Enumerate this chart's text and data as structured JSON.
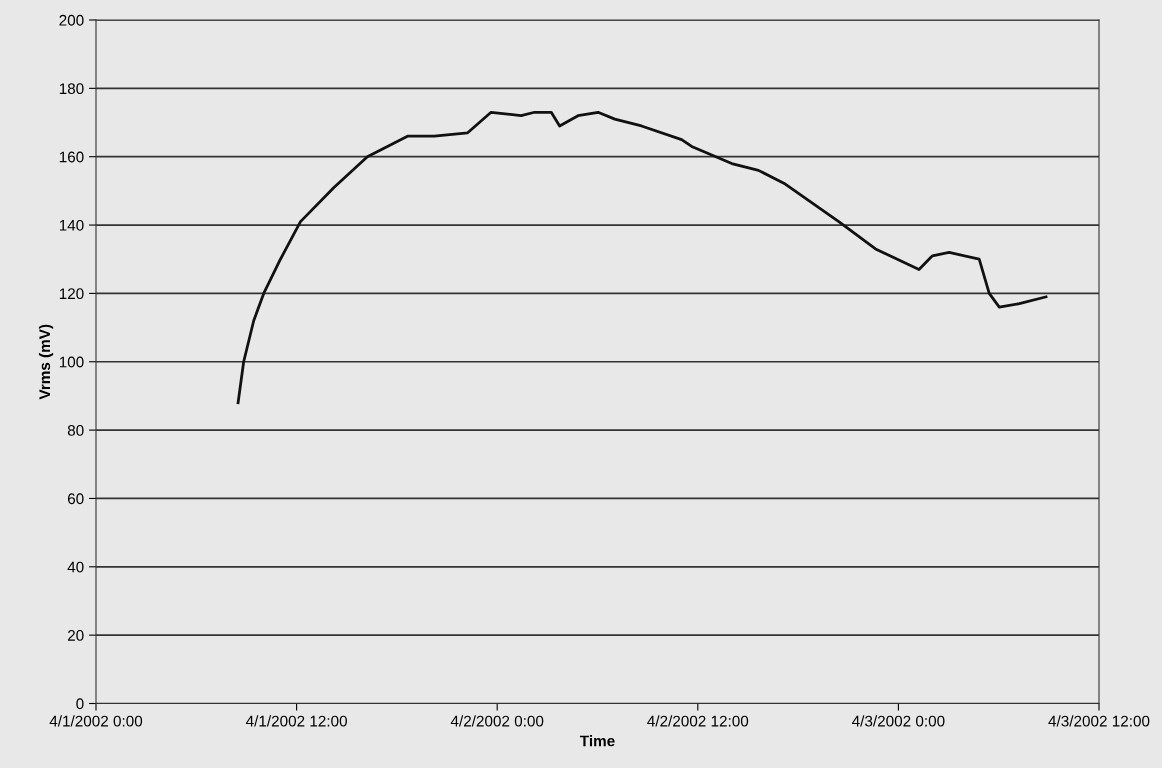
{
  "chart_data": {
    "type": "line",
    "xlabel": "Time",
    "ylabel": "Vrms (mV)",
    "x": [
      "2002-04-01T08:30",
      "2002-04-01T08:50",
      "2002-04-01T09:26",
      "2002-04-01T10:02",
      "2002-04-01T11:02",
      "2002-04-01T12:14",
      "2002-04-01T14:14",
      "2002-04-01T16:14",
      "2002-04-01T18:38",
      "2002-04-01T20:14",
      "2002-04-01T22:14",
      "2002-04-01T23:38",
      "2002-04-02T01:26",
      "2002-04-02T02:14",
      "2002-04-02T03:14",
      "2002-04-02T03:44",
      "2002-04-02T04:50",
      "2002-04-02T06:02",
      "2002-04-02T07:02",
      "2002-04-02T08:38",
      "2002-04-02T11:02",
      "2002-04-02T11:38",
      "2002-04-02T14:02",
      "2002-04-02T15:38",
      "2002-04-02T17:14",
      "2002-04-02T20:26",
      "2002-04-02T22:38",
      "2002-04-03T01:14",
      "2002-04-03T02:02",
      "2002-04-03T03:02",
      "2002-04-03T04:50",
      "2002-04-03T05:26",
      "2002-04-03T06:02",
      "2002-04-03T07:14",
      "2002-04-03T08:50"
    ],
    "series": [
      {
        "color": "#111111",
        "values": [
          88,
          100,
          112,
          120,
          130,
          141,
          151,
          160,
          166,
          166,
          167,
          173,
          172,
          173,
          173,
          169,
          172,
          173,
          171,
          169,
          165,
          163,
          158,
          156,
          152,
          141,
          133,
          127,
          131,
          132,
          130,
          120,
          116,
          117,
          119
        ]
      }
    ],
    "xlim": [
      "2002-04-01T00:00",
      "2002-04-03T12:00"
    ],
    "xticks": [
      {
        "value": "2002-04-01T00:00",
        "label": "4/1/2002 0:00"
      },
      {
        "value": "2002-04-01T12:00",
        "label": "4/1/2002 12:00"
      },
      {
        "value": "2002-04-02T00:00",
        "label": "4/2/2002 0:00"
      },
      {
        "value": "2002-04-02T12:00",
        "label": "4/2/2002 12:00"
      },
      {
        "value": "2002-04-03T00:00",
        "label": "4/3/2002 0:00"
      },
      {
        "value": "2002-04-03T12:00",
        "label": "4/3/2002 12:00"
      }
    ],
    "ylim": [
      0,
      200
    ],
    "yticks": [
      0,
      20,
      40,
      60,
      80,
      100,
      120,
      140,
      160,
      180,
      200
    ],
    "grid": "y",
    "marker": "none",
    "line_style": "solid"
  }
}
